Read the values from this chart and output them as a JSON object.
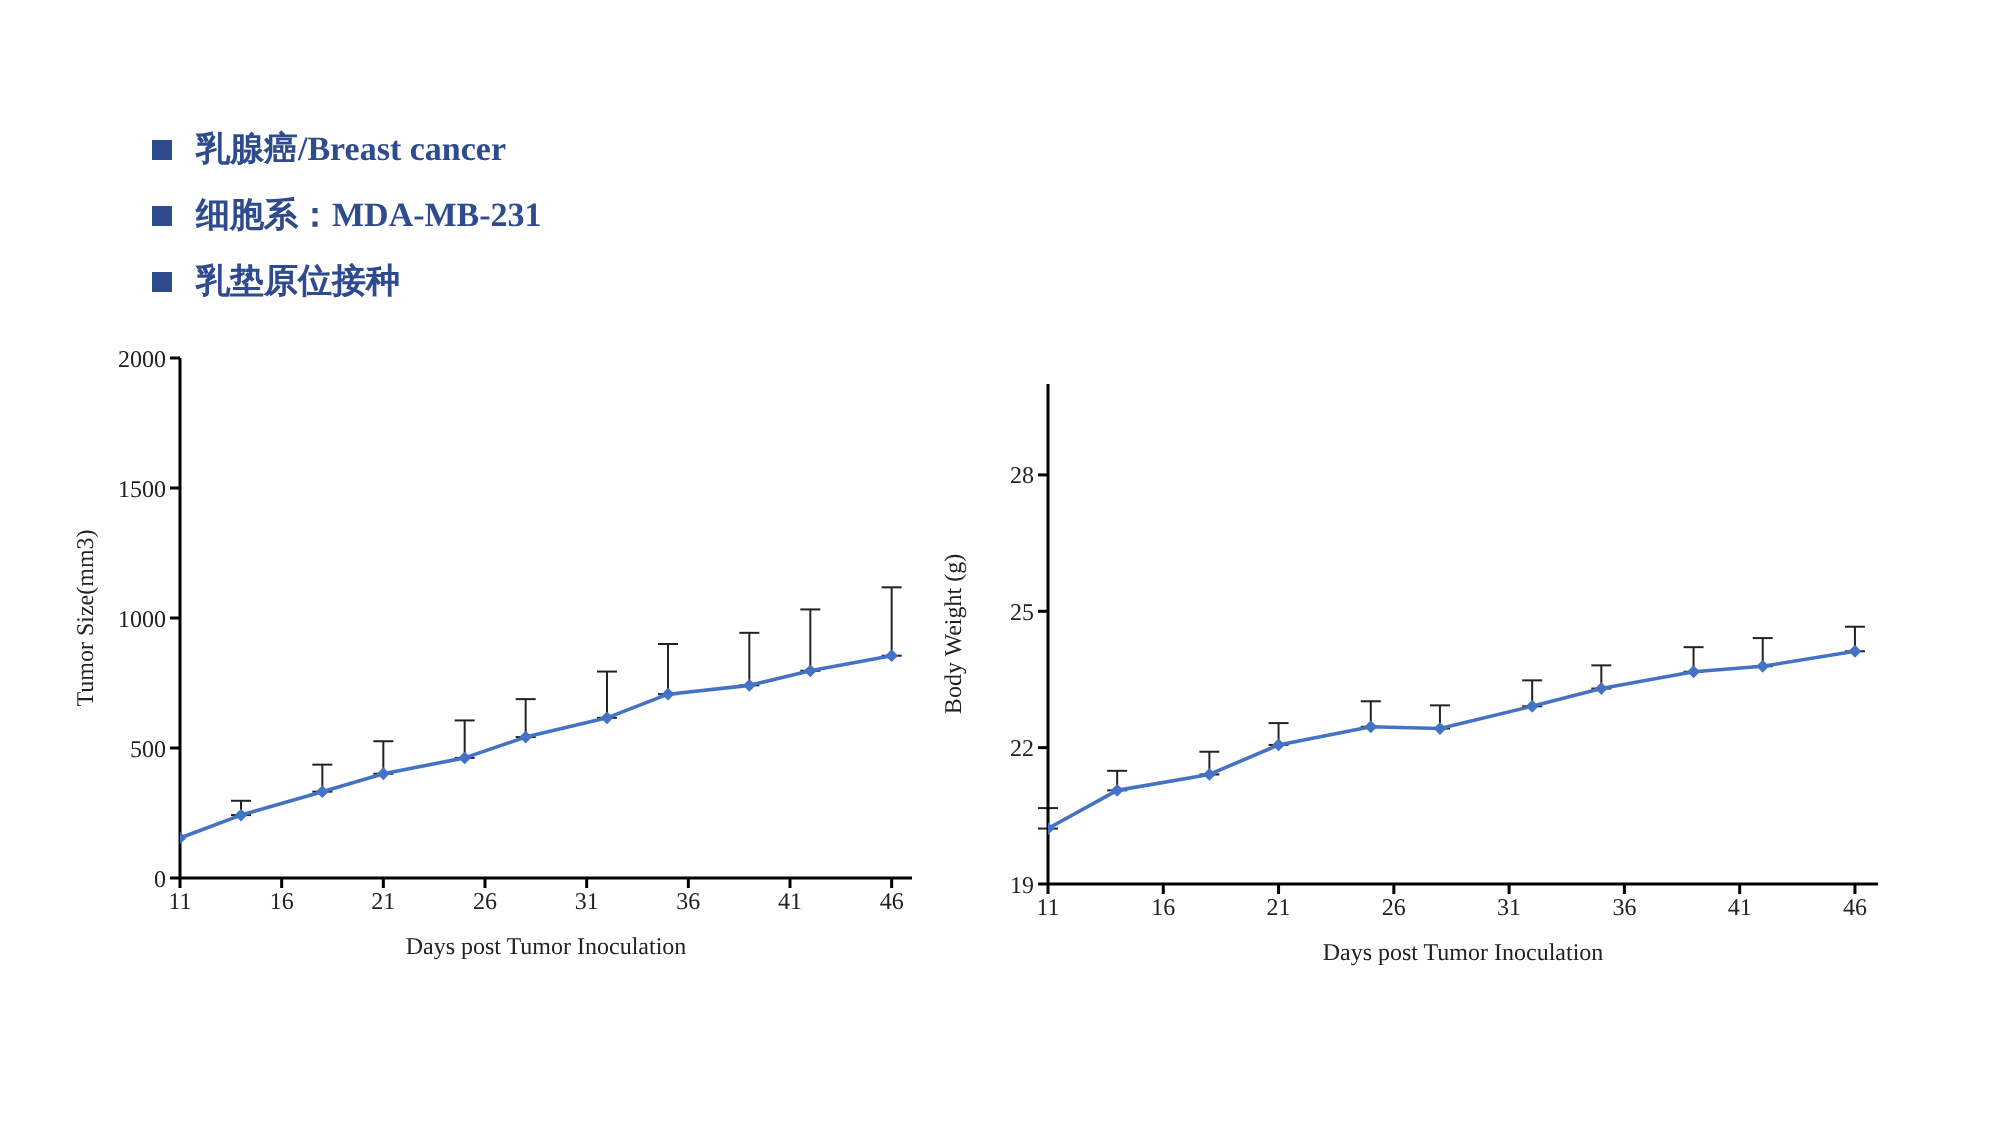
{
  "chart_data": [
    {
      "type": "line",
      "annotations": [
        "乳腺癌/Breast cancer",
        "细胞系：MDA-MB-231",
        "乳垫原位接种"
      ],
      "xlabel": "Days post Tumor Inoculation",
      "ylabel": "Tumor Size(mm3)",
      "x": [
        11,
        14,
        18,
        21,
        25,
        28,
        32,
        35,
        39,
        42,
        46
      ],
      "series": [
        {
          "color": "#4472c4",
          "values": [
            154,
            242,
            332,
            401,
            462,
            542,
            616,
            707,
            741,
            797,
            855
          ],
          "errors": [
            null,
            [
              242,
              297
            ],
            [
              332,
              436
            ],
            [
              401,
              526
            ],
            [
              462,
              606
            ],
            [
              542,
              688
            ],
            [
              616,
              794
            ],
            [
              707,
              900
            ],
            [
              741,
              943
            ],
            [
              797,
              1033
            ],
            [
              855,
              1118
            ]
          ]
        }
      ],
      "xlim": [
        11,
        47
      ],
      "xticks": [
        11,
        16,
        21,
        26,
        31,
        36,
        41,
        46
      ],
      "ylim": [
        0,
        2000
      ],
      "yticks": [
        0,
        500,
        1000,
        1500,
        2000
      ],
      "grid": false,
      "legend": false,
      "marker": "diamond",
      "line_style": "solid"
    },
    {
      "type": "line",
      "xlabel": "Days post Tumor Inoculation",
      "ylabel": "Body Weight (g)",
      "x": [
        11,
        14,
        18,
        21,
        25,
        28,
        32,
        35,
        39,
        42,
        46
      ],
      "series": [
        {
          "color": "#4472c4",
          "values": [
            20.22,
            21.06,
            21.41,
            22.06,
            22.46,
            22.42,
            22.91,
            23.3,
            23.67,
            23.79,
            24.12
          ],
          "errors": [
            [
              20.22,
              20.67
            ],
            [
              21.06,
              21.49
            ],
            [
              21.41,
              21.91
            ],
            [
              22.06,
              22.54
            ],
            [
              22.46,
              23.02
            ],
            [
              22.42,
              22.93
            ],
            [
              22.91,
              23.48
            ],
            [
              23.3,
              23.81
            ],
            [
              23.67,
              24.21
            ],
            [
              23.79,
              24.41
            ],
            [
              24.12,
              24.66
            ]
          ]
        }
      ],
      "xlim": [
        11,
        47
      ],
      "xticks": [
        11,
        16,
        21,
        26,
        31,
        36,
        41,
        46
      ],
      "ylim": [
        19,
        30
      ],
      "yticks": [
        19,
        22,
        25,
        28
      ],
      "grid": false,
      "legend": false,
      "marker": "diamond",
      "line_style": "solid"
    }
  ]
}
